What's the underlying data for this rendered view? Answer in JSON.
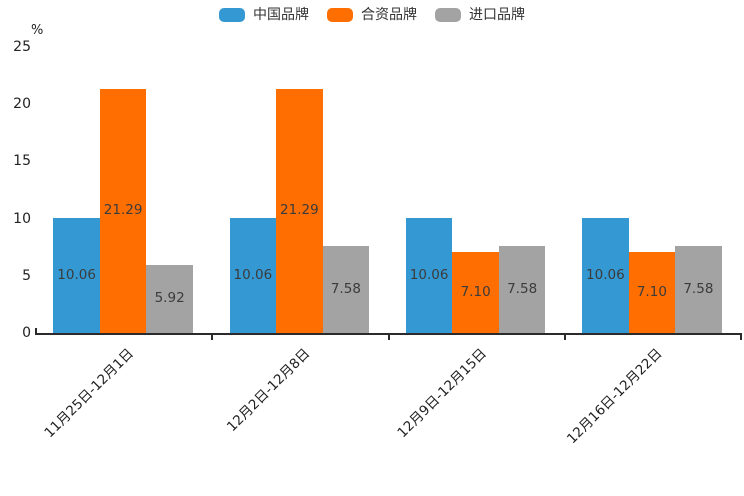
{
  "chart_data": {
    "type": "bar",
    "title": "",
    "ylabel": "%",
    "xlabel": "",
    "grid": false,
    "legend_position": "top-center",
    "categories": [
      "11月25日-12月1日",
      "12月2日-12月8日",
      "12月9日-12月15日",
      "12月16日-12月22日"
    ],
    "series": [
      {
        "name": "中国品牌",
        "color": "#3499d3",
        "values": [
          10.06,
          10.06,
          10.06,
          10.06
        ]
      },
      {
        "name": "合资品牌",
        "color": "#ff6e00",
        "values": [
          21.29,
          21.29,
          7.1,
          7.1
        ]
      },
      {
        "name": "进口品牌",
        "color": "#a3a3a3",
        "values": [
          5.92,
          7.58,
          7.58,
          7.58
        ]
      }
    ],
    "value_label_decimals": 2,
    "yticks": [
      0,
      5,
      10,
      15,
      20,
      25
    ],
    "ylim": [
      0,
      25
    ],
    "axis_color": "#2b2b2b",
    "value_label_color": "#3b3b3b"
  }
}
